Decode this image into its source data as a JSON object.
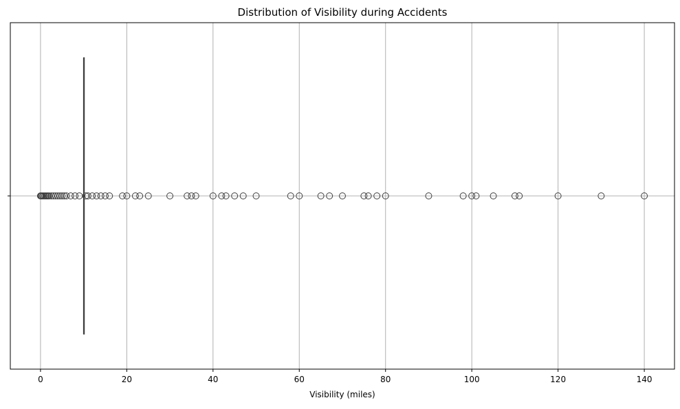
{
  "chart_data": {
    "type": "box",
    "orientation": "horizontal",
    "title": "Distribution of Visibility during Accidents",
    "xlabel": "Visibility (miles)",
    "ylabel": "",
    "xlim": [
      -7,
      147
    ],
    "xticks": [
      0,
      20,
      40,
      60,
      80,
      100,
      120,
      140
    ],
    "xtick_labels": [
      "0",
      "20",
      "40",
      "60",
      "80",
      "100",
      "120",
      "140"
    ],
    "grid": true,
    "box": {
      "q1": 10,
      "median": 10,
      "q3": 10,
      "whisker_low": 10,
      "whisker_high": 10
    },
    "outliers": [
      0,
      0.1,
      0.2,
      0.25,
      0.5,
      0.75,
      1,
      1.25,
      1.5,
      1.75,
      2,
      2.5,
      3,
      3.5,
      4,
      4.5,
      5,
      5.5,
      6,
      7,
      8,
      9,
      10.5,
      11,
      12,
      13,
      14,
      15,
      16,
      19,
      20,
      22,
      23,
      25,
      30,
      34,
      35,
      36,
      40,
      42,
      43,
      45,
      47,
      50,
      58,
      60,
      65,
      67,
      70,
      75,
      76,
      78,
      80,
      90,
      98,
      100,
      101,
      105,
      110,
      111,
      120,
      130,
      140
    ],
    "colors": {
      "box_line": "#3f3f3f",
      "grid": "#b0b0b0",
      "axis": "#000000"
    }
  }
}
